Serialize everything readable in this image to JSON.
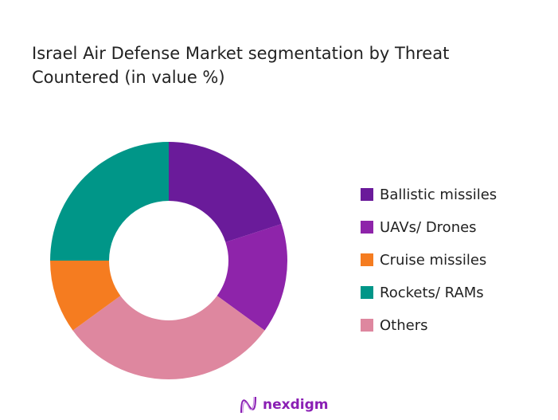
{
  "chart_data": {
    "type": "pie",
    "donut": true,
    "title": "Israel Air Defense Market segmentation by Threat Countered  (in value %)",
    "categories": [
      "Ballistic missiles",
      "UAVs/ Drones",
      "Cruise  missiles",
      "Rockets/ RAMs",
      "Others"
    ],
    "values": [
      20,
      15,
      10,
      25,
      30
    ],
    "colors": [
      "#6a1b9a",
      "#8e24aa",
      "#f57c20",
      "#009688",
      "#de879f"
    ],
    "clockwise_order_from_top": [
      "Ballistic missiles",
      "UAVs/ Drones",
      "Others",
      "Cruise  missiles",
      "Rockets/ RAMs"
    ],
    "legend_position": "right"
  },
  "brand": {
    "logo_text": "nexdigm",
    "color": "#8a1fb4"
  }
}
